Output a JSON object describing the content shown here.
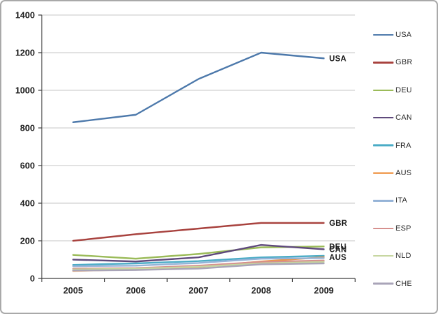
{
  "chart_data": {
    "type": "line",
    "title": "",
    "xlabel": "",
    "ylabel": "",
    "x_categories": [
      "2005",
      "2006",
      "2007",
      "2008",
      "2009"
    ],
    "ylim": [
      0,
      1400
    ],
    "ytick_interval": 200,
    "ytick_labels": [
      "0",
      "200",
      "400",
      "600",
      "800",
      "1000",
      "1200",
      "1400"
    ],
    "grid": "horizontal",
    "legend_position": "right",
    "axis_color": "#3f3f3f",
    "gridline_color": "#c6c6c6",
    "tick_label_color": "#262626",
    "end_label_color": "#1a1a1a",
    "series": [
      {
        "name": "USA",
        "color": "#4d79ab",
        "values": [
          830,
          870,
          1060,
          1200,
          1170
        ],
        "end_label": true
      },
      {
        "name": "GBR",
        "color": "#a8423e",
        "values": [
          200,
          235,
          265,
          295,
          295
        ],
        "end_label": true
      },
      {
        "name": "DEU",
        "color": "#9bbb59",
        "values": [
          125,
          105,
          130,
          165,
          170
        ],
        "end_label": true
      },
      {
        "name": "CAN",
        "color": "#5f4a7c",
        "values": [
          100,
          90,
          112,
          178,
          155
        ],
        "end_label": true
      },
      {
        "name": "FRA",
        "color": "#4bacc6",
        "values": [
          72,
          80,
          92,
          112,
          120
        ],
        "end_label": false
      },
      {
        "name": "AUS",
        "color": "#ef9546",
        "values": [
          40,
          48,
          60,
          90,
          113
        ],
        "end_label": true
      },
      {
        "name": "ITA",
        "color": "#95b3d7",
        "values": [
          65,
          68,
          82,
          105,
          108
        ],
        "end_label": false
      },
      {
        "name": "ESP",
        "color": "#d6908e",
        "values": [
          52,
          55,
          68,
          88,
          95
        ],
        "end_label": false
      },
      {
        "name": "NLD",
        "color": "#c6d6a0",
        "values": [
          48,
          52,
          62,
          80,
          88
        ],
        "end_label": false
      },
      {
        "name": "CHE",
        "color": "#a9a4b8",
        "values": [
          42,
          45,
          52,
          75,
          80
        ],
        "end_label": false
      }
    ]
  }
}
